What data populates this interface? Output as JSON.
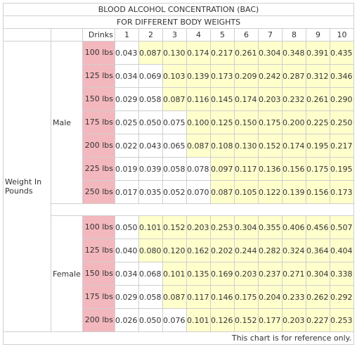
{
  "title": "BLOOD ALCOHOL CONCENTRATION (BAC)",
  "subtitle": "FOR DIFFERENT BODY WEIGHTS",
  "drinks_label": "Drinks",
  "drinks": [
    "1",
    "2",
    "3",
    "4",
    "5",
    "6",
    "7",
    "8",
    "9",
    "10"
  ],
  "row_group_label": "Weight In Pounds",
  "colors": {
    "highlight": "#ffffcc",
    "weight_cell": "#f3b8bd",
    "border": "#cfcfcf"
  },
  "groups": [
    {
      "label": "Male",
      "rows": [
        {
          "weight": "100 lbs",
          "values": [
            "0.043",
            "0.087",
            "0.130",
            "0.174",
            "0.217",
            "0.261",
            "0.304",
            "0.348",
            "0.391",
            "0.435"
          ],
          "first_highlighted": 2
        },
        {
          "weight": "125 lbs",
          "values": [
            "0.034",
            "0.069",
            "0.103",
            "0.139",
            "0.173",
            "0.209",
            "0.242",
            "0.287",
            "0.312",
            "0.346"
          ],
          "first_highlighted": 3
        },
        {
          "weight": "150 lbs",
          "values": [
            "0.029",
            "0.058",
            "0.087",
            "0.116",
            "0.145",
            "0.174",
            "0.203",
            "0.232",
            "0.261",
            "0.290"
          ],
          "first_highlighted": 3
        },
        {
          "weight": "175 lbs",
          "values": [
            "0.025",
            "0.050",
            "0.075",
            "0.100",
            "0.125",
            "0.150",
            "0.175",
            "0.200",
            "0.225",
            "0.250"
          ],
          "first_highlighted": 4
        },
        {
          "weight": "200 lbs",
          "values": [
            "0.022",
            "0.043",
            "0.065",
            "0.087",
            "0.108",
            "0.130",
            "0.152",
            "0.174",
            "0.195",
            "0.217"
          ],
          "first_highlighted": 4
        },
        {
          "weight": "225 lbs",
          "values": [
            "0.019",
            "0.039",
            "0.058",
            "0.078",
            "0.097",
            "0.117",
            "0.136",
            "0.156",
            "0.175",
            "0.195"
          ],
          "first_highlighted": 5
        },
        {
          "weight": "250 lbs",
          "values": [
            "0.017",
            "0.035",
            "0.052",
            "0.070",
            "0.087",
            "0.105",
            "0.122",
            "0.139",
            "0.156",
            "0.173"
          ],
          "first_highlighted": 5
        }
      ]
    },
    {
      "label": "Female",
      "rows": [
        {
          "weight": "100 lbs",
          "values": [
            "0.050",
            "0.101",
            "0.152",
            "0.203",
            "0.253",
            "0.304",
            "0.355",
            "0.406",
            "0.456",
            "0.507"
          ],
          "first_highlighted": 2
        },
        {
          "weight": "125 lbs",
          "values": [
            "0.040",
            "0.080",
            "0.120",
            "0.162",
            "0.202",
            "0.244",
            "0.282",
            "0.324",
            "0.364",
            "0.404"
          ],
          "first_highlighted": 2
        },
        {
          "weight": "150 lbs",
          "values": [
            "0.034",
            "0.068",
            "0.101",
            "0.135",
            "0.169",
            "0.203",
            "0.237",
            "0.271",
            "0.304",
            "0.338"
          ],
          "first_highlighted": 3
        },
        {
          "weight": "175 lbs",
          "values": [
            "0.029",
            "0.058",
            "0.087",
            "0.117",
            "0.146",
            "0.175",
            "0.204",
            "0.233",
            "0.262",
            "0.292"
          ],
          "first_highlighted": 3
        },
        {
          "weight": "200 lbs",
          "values": [
            "0.026",
            "0.050",
            "0.076",
            "0.101",
            "0.126",
            "0.152",
            "0.177",
            "0.203",
            "0.227",
            "0.253"
          ],
          "first_highlighted": 4
        }
      ]
    }
  ],
  "footnote": "This chart is for reference only."
}
